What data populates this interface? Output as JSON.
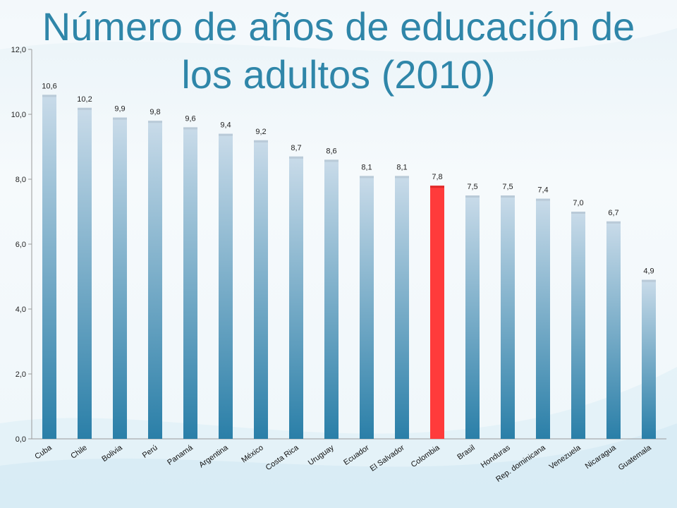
{
  "title_lines": [
    "Número de años de educación de",
    "los adultos (2010)"
  ],
  "chart_data": {
    "type": "bar",
    "categories": [
      "Cuba",
      "Chile",
      "Bolivia",
      "Perú",
      "Panamá",
      "Argentina",
      "México",
      "Costa Rica",
      "Uruguay",
      "Ecuador",
      "El Salvador",
      "Colombia",
      "Brasil",
      "Honduras",
      "Rep. dominicana",
      "Venezuela",
      "Nicaragua",
      "Guatemala"
    ],
    "values": [
      10.6,
      10.2,
      9.9,
      9.8,
      9.6,
      9.4,
      9.2,
      8.7,
      8.6,
      8.1,
      8.1,
      7.8,
      7.5,
      7.5,
      7.4,
      7.0,
      6.7,
      4.9
    ],
    "data_labels": [
      "10,6",
      "10,2",
      "9,9",
      "9,8",
      "9,6",
      "9,4",
      "9,2",
      "8,7",
      "8,6",
      "8,1",
      "8,1",
      "7,8",
      "7,5",
      "7,5",
      "7,4",
      "7,0",
      "6,7",
      "4,9"
    ],
    "yticks": [
      0,
      2,
      4,
      6,
      8,
      10,
      12
    ],
    "ytick_labels": [
      "0,0",
      "2,0",
      "4,0",
      "6,0",
      "8,0",
      "10,0",
      "12,0"
    ],
    "ylim": [
      0,
      12
    ],
    "highlight_category": "Colombia",
    "colors": {
      "bar_top": "#c9dbe9",
      "bar_bottom": "#2a7fa8",
      "highlight": "#ff3b3b",
      "title": "#2f86a9"
    },
    "grid": false
  }
}
